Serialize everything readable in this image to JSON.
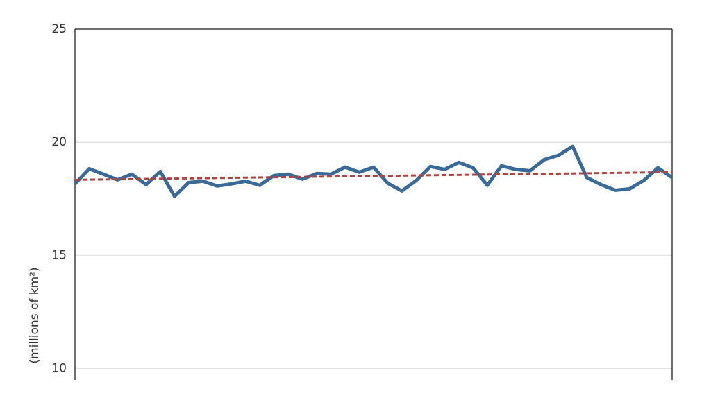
{
  "chart_data": {
    "type": "line",
    "y_label": "(millions of km²)",
    "ylim": [
      9.5,
      25
    ],
    "yticks": [
      10,
      15,
      20,
      25
    ],
    "grid": true,
    "series": [
      {
        "color": "#3a6b98",
        "values": [
          18.16,
          18.83,
          18.59,
          18.34,
          18.59,
          18.13,
          18.71,
          17.61,
          18.22,
          18.28,
          18.07,
          18.16,
          18.28,
          18.1,
          18.53,
          18.59,
          18.37,
          18.62,
          18.59,
          18.9,
          18.68,
          18.9,
          18.19,
          17.85,
          18.31,
          18.93,
          18.8,
          19.11,
          18.87,
          18.1,
          18.96,
          18.8,
          18.74,
          19.23,
          19.42,
          19.82,
          18.44,
          18.13,
          17.88,
          17.94,
          18.31,
          18.87,
          18.44
        ]
      }
    ],
    "trendline": {
      "color": "#b5403a",
      "dashed": true,
      "values": [
        18.34,
        18.68
      ]
    }
  }
}
